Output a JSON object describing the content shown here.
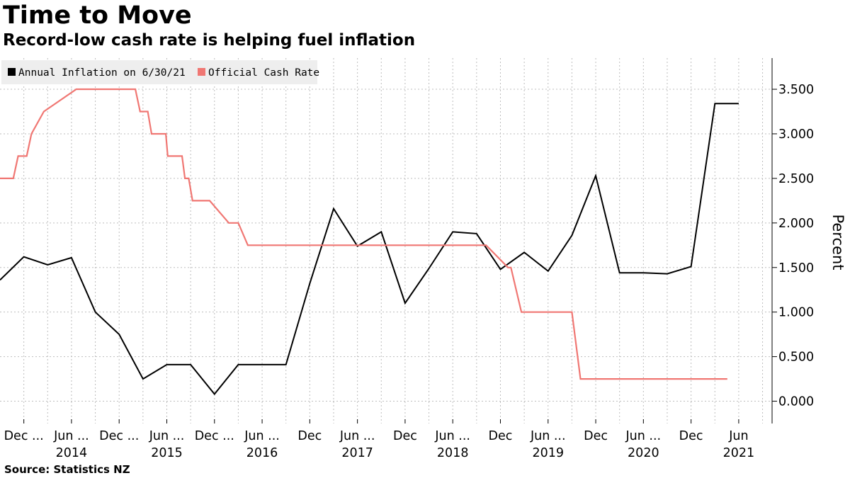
{
  "header": {
    "title": "Time to Move",
    "subtitle": "Record-low cash rate is helping fuel inflation"
  },
  "footer": {
    "source": "Source: Statistics NZ"
  },
  "colors": {
    "inflation": "#000000",
    "cash_rate": "#f07773",
    "legend_bg": "#eeeeee",
    "grid": "#bdbdbd"
  },
  "chart_data": {
    "type": "line",
    "title": "Time to Move",
    "subtitle": "Record-low cash rate is helping fuel inflation",
    "xlabel": "",
    "ylabel": "Percent",
    "ylim": [
      -0.25,
      3.85
    ],
    "xlim": [
      2013.5,
      2021.6
    ],
    "grid": true,
    "legend_position": "top-left",
    "y_ticks": [
      0,
      0.5,
      1,
      1.5,
      2,
      2.5,
      3,
      3.5
    ],
    "y_tick_labels": [
      "0.000",
      "0.500",
      "1.000",
      "1.500",
      "2.000",
      "2.500",
      "3.000",
      "3.500"
    ],
    "x_ticks": [
      {
        "label": "Dec ...",
        "year": "",
        "x": 2013.75
      },
      {
        "label": "Jun ...",
        "year": "2014",
        "x": 2014.25
      },
      {
        "label": "Dec ...",
        "year": "",
        "x": 2014.75
      },
      {
        "label": "Jun ...",
        "year": "2015",
        "x": 2015.25
      },
      {
        "label": "Dec ...",
        "year": "",
        "x": 2015.75
      },
      {
        "label": "Jun ...",
        "year": "2016",
        "x": 2016.25
      },
      {
        "label": "Dec",
        "year": "",
        "x": 2016.75
      },
      {
        "label": "Jun ...",
        "year": "2017",
        "x": 2017.25
      },
      {
        "label": "Dec",
        "year": "",
        "x": 2017.75
      },
      {
        "label": "Jun ...",
        "year": "2018",
        "x": 2018.25
      },
      {
        "label": "Dec",
        "year": "",
        "x": 2018.75
      },
      {
        "label": "Jun ...",
        "year": "2019",
        "x": 2019.25
      },
      {
        "label": "Dec",
        "year": "",
        "x": 2019.75
      },
      {
        "label": "Jun ...",
        "year": "2020",
        "x": 2020.25
      },
      {
        "label": "Dec",
        "year": "",
        "x": 2020.75
      },
      {
        "label": "Jun",
        "year": "2021",
        "x": 2021.25
      }
    ],
    "series": [
      {
        "name": "Annual Inflation on 6/30/21",
        "color": "#000000",
        "x": [
          2013.5,
          2013.75,
          2014.0,
          2014.25,
          2014.5,
          2014.75,
          2015.0,
          2015.25,
          2015.5,
          2015.75,
          2016.0,
          2016.25,
          2016.5,
          2016.75,
          2017.0,
          2017.25,
          2017.5,
          2017.75,
          2018.0,
          2018.25,
          2018.5,
          2018.75,
          2019.0,
          2019.25,
          2019.5,
          2019.75,
          2020.0,
          2020.25,
          2020.5,
          2020.75,
          2021.0,
          2021.25
        ],
        "values": [
          1.36,
          1.62,
          1.53,
          1.61,
          1.0,
          0.75,
          0.25,
          0.41,
          0.41,
          0.08,
          0.41,
          0.41,
          0.41,
          1.32,
          2.16,
          1.74,
          1.9,
          1.1,
          1.49,
          1.9,
          1.88,
          1.48,
          1.67,
          1.46,
          1.86,
          2.53,
          1.44,
          1.44,
          1.43,
          1.51,
          3.34,
          3.34
        ]
      },
      {
        "name": "Official Cash Rate",
        "color": "#f07773",
        "x": [
          2013.5,
          2013.64,
          2013.69,
          2013.78,
          2013.83,
          2013.96,
          2014.3,
          2014.5,
          2014.92,
          2014.97,
          2015.05,
          2015.09,
          2015.24,
          2015.26,
          2015.37,
          2015.41,
          2015.44,
          2015.48,
          2015.52,
          2015.56,
          2015.62,
          2015.7,
          2015.9,
          2016.0,
          2016.1,
          2016.2,
          2016.37,
          2017.2,
          2017.6,
          2018.6,
          2018.83,
          2018.86,
          2018.97,
          2019.02,
          2019.07,
          2019.11,
          2019.5,
          2019.59,
          2019.64,
          2021.13
        ],
        "values": [
          2.5,
          2.5,
          2.75,
          2.75,
          3.0,
          3.25,
          3.5,
          3.5,
          3.5,
          3.25,
          3.25,
          3.0,
          3.0,
          2.75,
          2.75,
          2.75,
          2.5,
          2.5,
          2.25,
          2.25,
          2.25,
          2.25,
          2.0,
          2.0,
          1.75,
          1.75,
          1.75,
          1.75,
          1.75,
          1.75,
          1.5,
          1.5,
          1.0,
          1.0,
          1.0,
          1.0,
          1.0,
          0.25,
          0.25,
          0.25
        ]
      }
    ]
  }
}
